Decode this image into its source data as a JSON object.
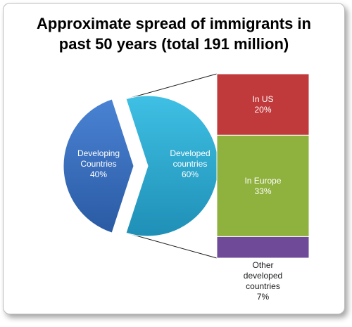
{
  "chart_data": {
    "type": "bar-of-pie",
    "title_line1": "Approximate spread of immigrants in",
    "title_line2": "past 50 years (total 191 million)",
    "pie": {
      "slices": [
        {
          "label_line1": "Developing",
          "label_line2": "Countries",
          "value": 40,
          "value_label": "40%",
          "color": "#3a6fc0"
        },
        {
          "label_line1": "Developed",
          "label_line2": "countries",
          "value": 60,
          "value_label": "60%",
          "color": "#2da9cf"
        }
      ]
    },
    "bar": {
      "segments": [
        {
          "label_lines": [
            "In US"
          ],
          "value": 20,
          "value_label": "20%",
          "color": "#c0393b"
        },
        {
          "label_lines": [
            "In Europe"
          ],
          "value": 33,
          "value_label": "33%",
          "color": "#8fb13e"
        },
        {
          "label_lines": [
            "Other",
            "developed",
            "countries"
          ],
          "value": 7,
          "value_label": "7%",
          "color": "#6e4a99"
        }
      ]
    }
  }
}
